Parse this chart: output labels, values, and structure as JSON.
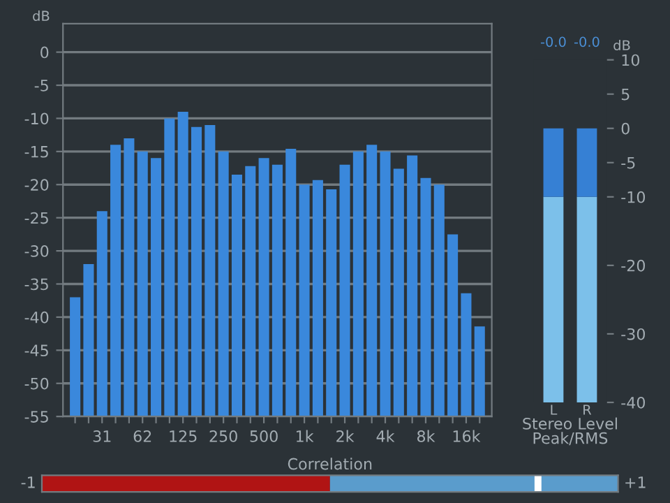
{
  "chart_data": [
    {
      "type": "bar",
      "ylabel": "dB",
      "categories": [
        null,
        null,
        "31",
        null,
        null,
        "62",
        null,
        null,
        "125",
        null,
        null,
        "250",
        null,
        null,
        "500",
        null,
        null,
        "1k",
        null,
        null,
        "2k",
        null,
        null,
        "4k",
        null,
        null,
        "8k",
        null,
        null,
        "16k",
        null
      ],
      "base": [
        -55,
        -55,
        -55,
        -55,
        -55,
        -55,
        -55,
        -55,
        -55,
        -55,
        -55,
        -55,
        -55,
        -55,
        -55,
        -55,
        -55,
        -55,
        -55,
        -55,
        -55,
        -55,
        -55,
        -55,
        -55,
        -55,
        -55,
        -55,
        -55,
        -55,
        -55
      ],
      "values": [
        18,
        23,
        31,
        41,
        42,
        40,
        39,
        45,
        46,
        43.7,
        44,
        40,
        36.5,
        37.8,
        39,
        38,
        40.4,
        35,
        35.7,
        34.3,
        38,
        40,
        41,
        40,
        37.4,
        39.4,
        36,
        35,
        27.5,
        18.6,
        13.6
      ],
      "color": "#3a88dc",
      "ylim": [
        -55,
        4.3
      ],
      "yticks": [
        -55,
        -50,
        -45,
        -40,
        -35,
        -30,
        -25,
        -20,
        -15,
        -10,
        -5,
        0
      ],
      "grid": "y"
    },
    {
      "type": "bar",
      "categories": [
        "L",
        "R"
      ],
      "xlabel": "Stereo Level\nPeak/RMS",
      "ylabel": "dB",
      "series": [
        {
          "color": "#7cc0ea",
          "base": [
            -40,
            -40
          ],
          "values": [
            30,
            30
          ]
        },
        {
          "color": "#3680d4",
          "base": [
            -10,
            -10
          ],
          "values": [
            10,
            10
          ]
        }
      ],
      "annotations": [
        "-0.0",
        "-0.0"
      ],
      "ylim": [
        -40,
        10
      ],
      "yticks": [
        -40,
        -30,
        -20,
        -10,
        -5,
        0,
        5,
        10
      ]
    },
    {
      "type": "other",
      "title": "Correlation",
      "annotations": [
        "-1",
        "+1"
      ]
    }
  ]
}
